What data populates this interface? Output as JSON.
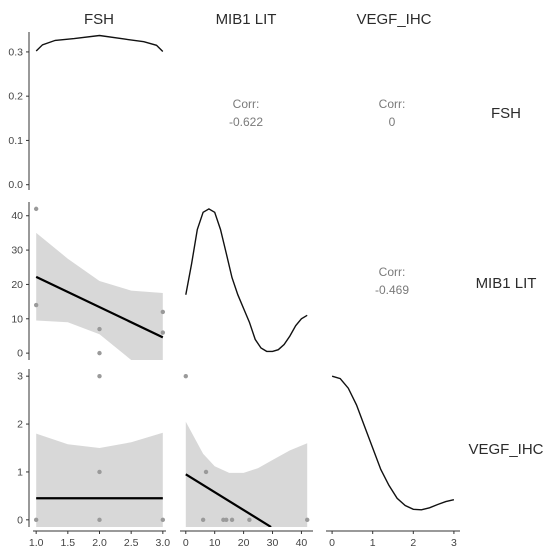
{
  "chart_data": {
    "type": "scatter",
    "variables": [
      "FSH",
      "MIB1 LIT",
      "VEGF_IHC"
    ],
    "axes": {
      "FSH": {
        "range": [
          0.95,
          3.05
        ],
        "ticks": [
          1.0,
          1.5,
          2.0,
          2.5,
          3.0
        ],
        "tick_labels": [
          "1.0",
          "1.5",
          "2.0",
          "2.5",
          "3.0"
        ]
      },
      "MIB1 LIT": {
        "range": [
          -2,
          44
        ],
        "ticks": [
          0,
          10,
          20,
          30,
          40
        ],
        "tick_labels": [
          "0",
          "10",
          "20",
          "30",
          "40"
        ]
      },
      "VEGF_IHC": {
        "range": [
          -0.15,
          3.15
        ],
        "ticks": [
          0,
          1,
          2,
          3
        ],
        "tick_labels": [
          "0",
          "1",
          "2",
          "3"
        ]
      },
      "density": {
        "range": [
          -0.012,
          0.345
        ],
        "ticks": [
          0.0,
          0.1,
          0.2,
          0.3
        ],
        "tick_labels": [
          "0.0",
          "0.1",
          "0.2",
          "0.3"
        ]
      }
    },
    "diagonal": [
      {
        "variable": "FSH",
        "density": [
          [
            1.0,
            0.302
          ],
          [
            1.1,
            0.316
          ],
          [
            1.3,
            0.326
          ],
          [
            1.6,
            0.33
          ],
          [
            2.0,
            0.337
          ],
          [
            2.4,
            0.329
          ],
          [
            2.7,
            0.323
          ],
          [
            2.9,
            0.315
          ],
          [
            3.0,
            0.301
          ]
        ]
      },
      {
        "variable": "MIB1 LIT",
        "density": [
          [
            0,
            17
          ],
          [
            2,
            26
          ],
          [
            4,
            36
          ],
          [
            6,
            41
          ],
          [
            8,
            42
          ],
          [
            10,
            41
          ],
          [
            12,
            36
          ],
          [
            14,
            29
          ],
          [
            16,
            22
          ],
          [
            18,
            17
          ],
          [
            20,
            13
          ],
          [
            22,
            9
          ],
          [
            24,
            4
          ],
          [
            26,
            1.5
          ],
          [
            28,
            0.5
          ],
          [
            30,
            0.5
          ],
          [
            32,
            1
          ],
          [
            34,
            2.5
          ],
          [
            36,
            5
          ],
          [
            38,
            8
          ],
          [
            40,
            10
          ],
          [
            42,
            11
          ]
        ]
      },
      {
        "variable": "VEGF_IHC",
        "density": [
          [
            0.0,
            3.0
          ],
          [
            0.2,
            2.95
          ],
          [
            0.4,
            2.75
          ],
          [
            0.6,
            2.4
          ],
          [
            0.8,
            1.95
          ],
          [
            1.0,
            1.5
          ],
          [
            1.2,
            1.05
          ],
          [
            1.4,
            0.72
          ],
          [
            1.6,
            0.45
          ],
          [
            1.8,
            0.3
          ],
          [
            2.0,
            0.22
          ],
          [
            2.2,
            0.21
          ],
          [
            2.4,
            0.25
          ],
          [
            2.6,
            0.32
          ],
          [
            2.8,
            0.38
          ],
          [
            3.0,
            0.42
          ]
        ]
      }
    ],
    "correlations": [
      {
        "label": "Corr:",
        "value": "-0.622",
        "row": "FSH",
        "col": "MIB1 LIT"
      },
      {
        "label": "Corr:",
        "value": "0",
        "row": "FSH",
        "col": "VEGF_IHC"
      },
      {
        "label": "Corr:",
        "value": "-0.469",
        "row": "MIB1 LIT",
        "col": "VEGF_IHC"
      }
    ],
    "scatter_panels": [
      {
        "x": "FSH",
        "y": "MIB1 LIT",
        "points": [
          [
            1,
            42
          ],
          [
            1,
            14
          ],
          [
            2,
            7
          ],
          [
            2,
            0
          ],
          [
            3,
            12
          ],
          [
            3,
            6
          ]
        ],
        "fit": [
          [
            1.0,
            22.2
          ],
          [
            3.0,
            4.6
          ]
        ],
        "band_upper": [
          [
            1.0,
            35
          ],
          [
            1.5,
            27.5
          ],
          [
            2.0,
            21
          ],
          [
            2.5,
            18.2
          ],
          [
            3.0,
            17.5
          ]
        ],
        "band_lower": [
          [
            1.0,
            9.5
          ],
          [
            1.5,
            9
          ],
          [
            2.0,
            5.5
          ],
          [
            2.5,
            -2
          ],
          [
            3.0,
            -8.5
          ]
        ]
      },
      {
        "x": "FSH",
        "y": "VEGF_IHC",
        "points": [
          [
            1,
            0
          ],
          [
            2,
            3
          ],
          [
            2,
            1
          ],
          [
            2,
            0
          ],
          [
            3,
            0
          ]
        ],
        "fit": [
          [
            1.0,
            0.45
          ],
          [
            3.0,
            0.45
          ]
        ],
        "band_upper": [
          [
            1.0,
            1.8
          ],
          [
            1.5,
            1.58
          ],
          [
            2.0,
            1.5
          ],
          [
            2.5,
            1.62
          ],
          [
            3.0,
            1.82
          ]
        ],
        "band_lower": [
          [
            1.0,
            -0.9
          ],
          [
            1.5,
            -0.67
          ],
          [
            2.0,
            -0.6
          ],
          [
            2.5,
            -0.72
          ],
          [
            3.0,
            -0.92
          ]
        ]
      },
      {
        "x": "MIB1 LIT",
        "y": "VEGF_IHC",
        "points": [
          [
            0,
            3
          ],
          [
            7,
            1
          ],
          [
            6,
            0
          ],
          [
            13,
            0
          ],
          [
            14,
            0
          ],
          [
            16,
            0
          ],
          [
            22,
            0
          ],
          [
            42,
            0
          ]
        ],
        "fit": [
          [
            0,
            0.95
          ],
          [
            29.5,
            -0.15
          ]
        ],
        "band_upper": [
          [
            0,
            2.05
          ],
          [
            6,
            1.38
          ],
          [
            10,
            1.12
          ],
          [
            15,
            0.98
          ],
          [
            20,
            0.98
          ],
          [
            25,
            1.08
          ],
          [
            30,
            1.25
          ],
          [
            36,
            1.45
          ],
          [
            42,
            1.6
          ]
        ],
        "band_lower": [
          [
            0,
            -0.15
          ],
          [
            42,
            -0.15
          ]
        ]
      }
    ],
    "grid": false,
    "legend": "none"
  }
}
